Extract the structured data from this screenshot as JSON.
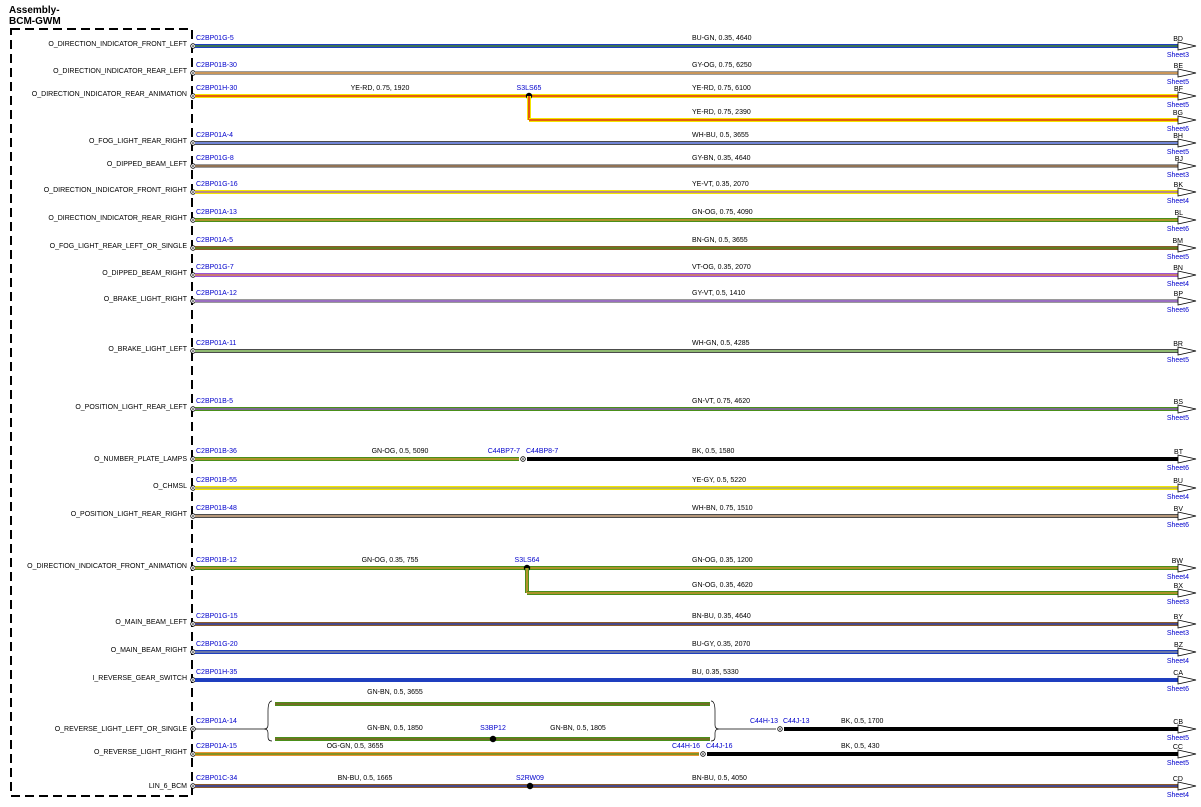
{
  "assembly": {
    "line1": "Assembly-",
    "line2": "BCM-GWM"
  },
  "colors": {
    "BU": "#1f3fbf",
    "GN": "#4a8f1a",
    "GY": "#9a9a9a",
    "OG": "#e89433",
    "YE": "#f2e600",
    "RD": "#e01010",
    "WH": "#ffffff",
    "BN": "#8b5a2b",
    "VT": "#9a55d6",
    "BK": "#000000",
    "label_blue": "#0000cc"
  },
  "rows": [
    {
      "signal": "O_DIRECTION_INDICATOR_FRONT_LEFT",
      "pin": "C2BP01G-5",
      "wire": "BU-GN, 0.35, 4640",
      "conn": "BD",
      "sheet": "Sheet3",
      "c1": "BU",
      "c2": "GN"
    },
    {
      "signal": "O_DIRECTION_INDICATOR_REAR_LEFT",
      "pin": "C2BP01B-30",
      "wire": "GY-OG, 0.75, 6250",
      "conn": "BE",
      "sheet": "Sheet5",
      "c1": "GY",
      "c2": "OG"
    },
    {
      "signal": "O_DIRECTION_INDICATOR_REAR_ANIMATION",
      "pin": "C2BP01H-30",
      "wire_left": "YE-RD, 0.75, 1920",
      "splice": "S3LS65",
      "wire": "YE-RD, 0.75, 6100",
      "conn": "BF",
      "sheet": "Sheet5",
      "c1": "YE",
      "c2": "RD",
      "branch": {
        "wire": "YE-RD, 0.75, 2390",
        "conn": "BG",
        "sheet": "Sheet6"
      }
    },
    {
      "signal": "O_FOG_LIGHT_REAR_RIGHT",
      "pin": "C2BP01A-4",
      "wire": "WH-BU, 0.5, 3655",
      "conn": "BH",
      "sheet": "Sheet5",
      "c1": "WH",
      "c2": "BU"
    },
    {
      "signal": "O_DIPPED_BEAM_LEFT",
      "pin": "C2BP01G-8",
      "wire": "GY-BN, 0.35, 4640",
      "conn": "BJ",
      "sheet": "Sheet3",
      "c1": "GY",
      "c2": "BN"
    },
    {
      "signal": "O_DIRECTION_INDICATOR_FRONT_RIGHT",
      "pin": "C2BP01G-16",
      "wire": "YE-VT, 0.35, 2070",
      "conn": "BK",
      "sheet": "Sheet4",
      "c1": "YE",
      "c2": "VT"
    },
    {
      "signal": "O_DIRECTION_INDICATOR_REAR_RIGHT",
      "pin": "C2BP01A-13",
      "wire": "GN-OG, 0.75, 4090",
      "conn": "BL",
      "sheet": "Sheet6",
      "c1": "GN",
      "c2": "OG"
    },
    {
      "signal": "O_FOG_LIGHT_REAR_LEFT_OR_SINGLE",
      "pin": "C2BP01A-5",
      "wire": "BN-GN, 0.5, 3655",
      "conn": "BM",
      "sheet": "Sheet5",
      "c1": "BN",
      "c2": "GN"
    },
    {
      "signal": "O_DIPPED_BEAM_RIGHT",
      "pin": "C2BP01G-7",
      "wire": "VT-OG, 0.35, 2070",
      "conn": "BN",
      "sheet": "Sheet4",
      "c1": "VT",
      "c2": "OG"
    },
    {
      "signal": "O_BRAKE_LIGHT_RIGHT",
      "pin": "C2BP01A-12",
      "wire": "GY-VT, 0.5, 1410",
      "conn": "BP",
      "sheet": "Sheet6",
      "c1": "GY",
      "c2": "VT"
    },
    {
      "signal": "O_BRAKE_LIGHT_LEFT",
      "pin": "C2BP01A-11",
      "wire": "WH-GN, 0.5, 4285",
      "conn": "BR",
      "sheet": "Sheet5",
      "c1": "WH",
      "c2": "GN"
    },
    {
      "signal": "O_POSITION_LIGHT_REAR_LEFT",
      "pin": "C2BP01B-5",
      "wire": "GN-VT, 0.75, 4620",
      "conn": "BS",
      "sheet": "Sheet5",
      "c1": "GN",
      "c2": "VT"
    },
    {
      "signal": "O_NUMBER_PLATE_LAMPS",
      "pin": "C2BP01B-36",
      "wire_left": "GN-OG, 0.5, 5090",
      "inline": "C44BP7-7",
      "inline2": "C44BP8-7",
      "wire": "BK, 0.5, 1580",
      "conn": "BT",
      "sheet": "Sheet6",
      "c1": "GN",
      "c2": "OG",
      "c_right": "BK"
    },
    {
      "signal": "O_CHMSL",
      "pin": "C2BP01B-55",
      "wire": "YE-GY, 0.5, 5220",
      "conn": "BU",
      "sheet": "Sheet4",
      "c1": "YE",
      "c2": "GY"
    },
    {
      "signal": "O_POSITION_LIGHT_REAR_RIGHT",
      "pin": "C2BP01B-48",
      "wire": "WH-BN, 0.75, 1510",
      "conn": "BV",
      "sheet": "Sheet6",
      "c1": "WH",
      "c2": "BN"
    },
    {
      "signal": "O_DIRECTION_INDICATOR_FRONT_ANIMATION",
      "pin": "C2BP01B-12",
      "wire_left": "GN-OG, 0.35, 755",
      "splice": "S3LS64",
      "wire": "GN-OG, 0.35, 1200",
      "conn": "BW",
      "sheet": "Sheet4",
      "c1": "GN",
      "c2": "OG",
      "branch": {
        "wire": "GN-OG, 0.35, 4620",
        "conn": "BX",
        "sheet": "Sheet3"
      }
    },
    {
      "signal": "O_MAIN_BEAM_LEFT",
      "pin": "C2BP01G-15",
      "wire": "BN-BU, 0.35, 4640",
      "conn": "BY",
      "sheet": "Sheet3",
      "c1": "BN",
      "c2": "BU"
    },
    {
      "signal": "O_MAIN_BEAM_RIGHT",
      "pin": "C2BP01G-20",
      "wire": "BU-GY, 0.35, 2070",
      "conn": "BZ",
      "sheet": "Sheet4",
      "c1": "BU",
      "c2": "GY"
    },
    {
      "signal": "I_REVERSE_GEAR_SWITCH",
      "pin": "C2BP01H-35",
      "wire": "BU, 0.35, 5330",
      "conn": "CA",
      "sheet": "Sheet6",
      "c1": "BU",
      "c2": "BU"
    },
    {
      "signal": "O_REVERSE_LIGHT_LEFT_OR_SINGLE",
      "pin": "C2BP01A-14",
      "wire_top": "GN-BN, 0.5, 3655",
      "wire_mid": "GN-BN, 0.5, 1850",
      "splice": "S3BP12",
      "wire_mid2": "GN-BN, 0.5, 1805",
      "inline": "C44H-13",
      "inline2": "C44J-13",
      "wire": "BK, 0.5, 1700",
      "conn": "CB",
      "sheet": "Sheet5",
      "c1": "GN",
      "c2": "BN",
      "c_right": "BK"
    },
    {
      "signal": "O_REVERSE_LIGHT_RIGHT",
      "pin": "C2BP01A-15",
      "wire_left": "OG-GN, 0.5, 3655",
      "inline": "C44H-16",
      "inline2": "C44J-16",
      "wire": "BK, 0.5, 430",
      "conn": "CC",
      "sheet": "Sheet5",
      "c1": "OG",
      "c2": "GN",
      "c_right": "BK"
    },
    {
      "signal": "LIN_6_BCM",
      "pin": "C2BP01C-34",
      "wire_left": "BN-BU, 0.5, 1665",
      "splice": "S2RW09",
      "wire": "BN-BU, 0.5, 4050",
      "conn": "CD",
      "sheet": "Sheet4",
      "c1": "BN",
      "c2": "BU"
    }
  ]
}
